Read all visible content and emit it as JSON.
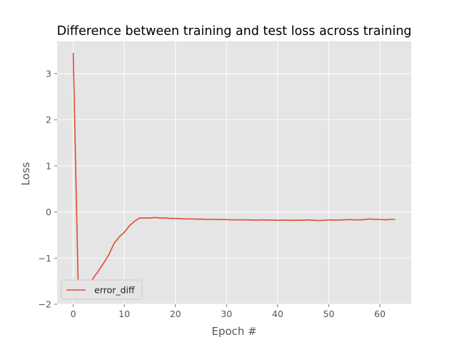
{
  "chart_data": {
    "type": "line",
    "title": "Difference between training and test loss across training",
    "xlabel": "Epoch #",
    "ylabel": "Loss",
    "xlim": [
      -3.15,
      66.15
    ],
    "ylim": [
      -2,
      3.7
    ],
    "xticks": [
      0,
      10,
      20,
      30,
      40,
      50,
      60
    ],
    "xtick_labels": [
      "0",
      "10",
      "20",
      "30",
      "40",
      "50",
      "60"
    ],
    "yticks": [
      -2,
      -1,
      0,
      1,
      2,
      3
    ],
    "ytick_labels": [
      "−2",
      "−1",
      "0",
      "1",
      "2",
      "3"
    ],
    "grid": true,
    "legend_position": "lower-left",
    "series": [
      {
        "name": "error_diff",
        "color": "#E24A33",
        "x": [
          0,
          1,
          2,
          3,
          4,
          5,
          6,
          7,
          8,
          9,
          10,
          11,
          12,
          13,
          14,
          15,
          16,
          17,
          18,
          19,
          20,
          21,
          22,
          23,
          24,
          25,
          26,
          27,
          28,
          29,
          30,
          31,
          32,
          33,
          34,
          35,
          36,
          37,
          38,
          39,
          40,
          41,
          42,
          43,
          44,
          45,
          46,
          47,
          48,
          49,
          50,
          51,
          52,
          53,
          54,
          55,
          56,
          57,
          58,
          59,
          60,
          61,
          62,
          63
        ],
        "y": [
          3.45,
          -1.7,
          -1.72,
          -1.6,
          -1.42,
          -1.27,
          -1.1,
          -0.92,
          -0.68,
          -0.54,
          -0.44,
          -0.3,
          -0.2,
          -0.13,
          -0.13,
          -0.13,
          -0.12,
          -0.13,
          -0.13,
          -0.14,
          -0.14,
          -0.145,
          -0.15,
          -0.15,
          -0.155,
          -0.155,
          -0.16,
          -0.16,
          -0.16,
          -0.165,
          -0.165,
          -0.17,
          -0.17,
          -0.17,
          -0.17,
          -0.175,
          -0.175,
          -0.17,
          -0.175,
          -0.175,
          -0.18,
          -0.175,
          -0.18,
          -0.18,
          -0.175,
          -0.18,
          -0.17,
          -0.18,
          -0.185,
          -0.18,
          -0.17,
          -0.175,
          -0.175,
          -0.17,
          -0.165,
          -0.17,
          -0.17,
          -0.165,
          -0.15,
          -0.16,
          -0.16,
          -0.17,
          -0.16,
          -0.16
        ]
      }
    ]
  }
}
